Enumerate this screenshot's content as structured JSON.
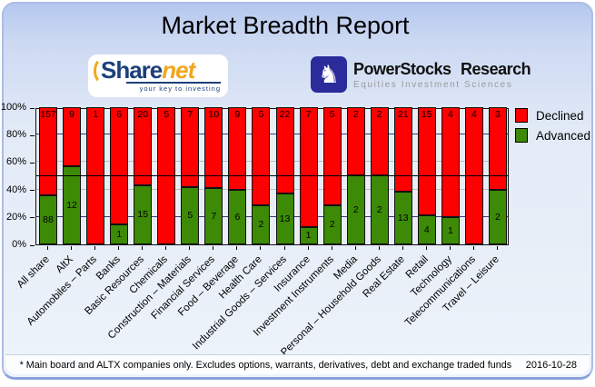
{
  "header": {
    "title": "Market Breadth Report"
  },
  "logos": {
    "sharenet": {
      "name_part1": "Share",
      "name_part2": "net",
      "tagline": "your key to investing"
    },
    "powerstocks": {
      "icon": "knight-icon",
      "title": "PowerStocks Research",
      "subtitle": "Equities Investment Sciences"
    }
  },
  "chart_data": {
    "type": "bar",
    "stacked": true,
    "percent_normalized": true,
    "categories": [
      "All share",
      "AltX",
      "Automobiles – Parts",
      "Banks",
      "Basic Resources",
      "Chemicals",
      "Construction – Materials",
      "Financial Services",
      "Food – Beverage",
      "Health Care",
      "Industrial Goods – Services",
      "Insurance",
      "Investment Instruments",
      "Media",
      "Personal – Household Goods",
      "Real Estate",
      "Retail",
      "Technology",
      "Telecommunications",
      "Travel – Leisure"
    ],
    "series": [
      {
        "name": "Declined",
        "color": "#ff0000",
        "values": [
          157,
          9,
          1,
          6,
          20,
          5,
          7,
          10,
          9,
          5,
          22,
          7,
          5,
          2,
          2,
          21,
          15,
          4,
          4,
          3
        ]
      },
      {
        "name": "Advanced",
        "color": "#3c8a05",
        "values": [
          88,
          12,
          0,
          1,
          15,
          0,
          5,
          7,
          6,
          2,
          13,
          1,
          2,
          2,
          2,
          13,
          4,
          1,
          0,
          2
        ]
      }
    ],
    "ylabel": "",
    "xlabel": "",
    "ylim": [
      0,
      100
    ],
    "yticks": [
      "0%",
      "20%",
      "40%",
      "60%",
      "80%",
      "100%"
    ],
    "reference_line_percent": 50,
    "legend_position": "top-right",
    "legend": [
      "Declined",
      "Advanced"
    ]
  },
  "footer": {
    "note": "* Main board and ALTX companies only. Excludes options, warrants, derivatives, debt and exchange traded funds",
    "date": "2016-10-28"
  }
}
